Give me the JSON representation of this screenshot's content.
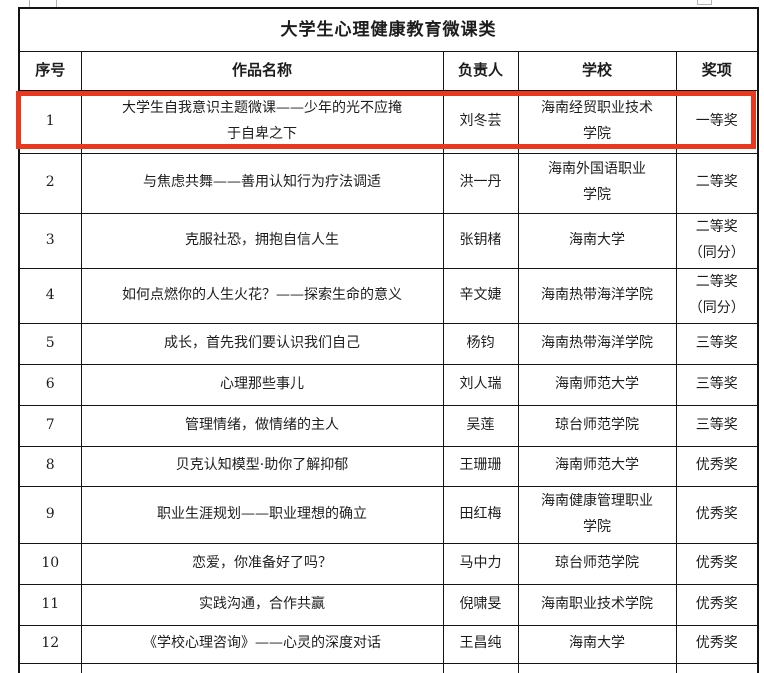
{
  "colors": {
    "highlight_red": "#e8391e",
    "border": "#141414",
    "text": "#1d1d1d",
    "background": "#ffffff"
  },
  "table": {
    "title": "大学生心理健康教育微课类",
    "headers": [
      "序号",
      "作品名称",
      "负责人",
      "学校",
      "奖项"
    ],
    "rows": [
      {
        "no": "1",
        "work": "大学生自我意识主题微课——少年的光不应掩\n于自卑之下",
        "leader": "刘冬芸",
        "school": "海南经贸职业技术\n学院",
        "award": "一等奖",
        "highlighted": true
      },
      {
        "no": "2",
        "work": "与焦虑共舞——善用认知行为疗法调适",
        "leader": "洪一丹",
        "school": "海南外国语职业\n学院",
        "award": "二等奖",
        "highlighted": false
      },
      {
        "no": "3",
        "work": "克服社恐，拥抱自信人生",
        "leader": "张钥楮",
        "school": "海南大学",
        "award": "二等奖\n（同分）",
        "highlighted": false
      },
      {
        "no": "4",
        "work": "如何点燃你的人生火花？——探索生命的意义",
        "leader": "辛文婕",
        "school": "海南热带海洋学院",
        "award": "二等奖\n（同分）",
        "highlighted": false
      },
      {
        "no": "5",
        "work": "成长，首先我们要认识我们自己",
        "leader": "杨钧",
        "school": "海南热带海洋学院",
        "award": "三等奖",
        "highlighted": false
      },
      {
        "no": "6",
        "work": "心理那些事儿",
        "leader": "刘人瑞",
        "school": "海南师范大学",
        "award": "三等奖",
        "highlighted": false
      },
      {
        "no": "7",
        "work": "管理情绪，做情绪的主人",
        "leader": "吴莲",
        "school": "琼台师范学院",
        "award": "三等奖",
        "highlighted": false
      },
      {
        "no": "8",
        "work": "贝克认知模型·助你了解抑郁",
        "leader": "王珊珊",
        "school": "海南师范大学",
        "award": "优秀奖",
        "highlighted": false
      },
      {
        "no": "9",
        "work": "职业生涯规划——职业理想的确立",
        "leader": "田红梅",
        "school": "海南健康管理职业\n学院",
        "award": "优秀奖",
        "highlighted": false
      },
      {
        "no": "10",
        "work": "恋爱，你准备好了吗？",
        "leader": "马中力",
        "school": "琼台师范学院",
        "award": "优秀奖",
        "highlighted": false
      },
      {
        "no": "11",
        "work": "实践沟通，合作共赢",
        "leader": "倪啸旻",
        "school": "海南职业技术学院",
        "award": "优秀奖",
        "highlighted": false
      },
      {
        "no": "12",
        "work": "《学校心理咨询》——心灵的深度对话",
        "leader": "王昌纯",
        "school": "海南大学",
        "award": "优秀奖",
        "highlighted": false
      }
    ]
  }
}
